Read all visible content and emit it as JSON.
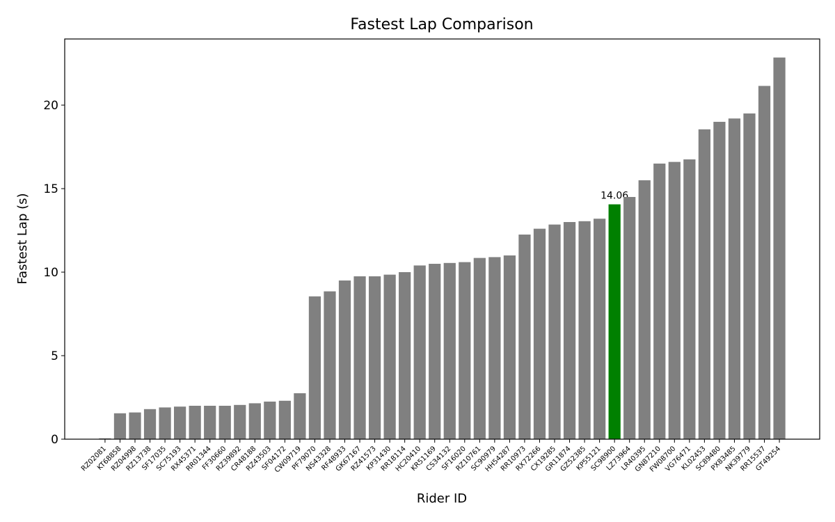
{
  "chart_data": {
    "type": "bar",
    "title": "Fastest Lap Comparison",
    "x_label": "Rider ID",
    "y_label": "Fastest Lap (s)",
    "categories": [
      "RZ02081",
      "KT68858",
      "RZ04998",
      "RZ13738",
      "SF17035",
      "SC75193",
      "RX45371",
      "RR01344",
      "FF30660",
      "RZ39892",
      "CR48188",
      "RZ43503",
      "SF04172",
      "CW09719",
      "PF79070",
      "NS43328",
      "RF48933",
      "GK67167",
      "RZ41573",
      "KP31430",
      "RR18114",
      "HC20410",
      "KR51169",
      "CS34132",
      "SF16020",
      "RZ10761",
      "SC90979",
      "HH54287",
      "RR10973",
      "RX72266",
      "CX19285",
      "GR11874",
      "GZ52385",
      "KP55121",
      "SC98900",
      "LZ73964",
      "LR40395",
      "GN87210",
      "FW08700",
      "VG76471",
      "KL02453",
      "SC89480",
      "PX83485",
      "NK39779",
      "RR15537",
      "GT49254"
    ],
    "values": [
      0.05,
      1.55,
      1.6,
      1.8,
      1.9,
      1.95,
      2.0,
      2.0,
      2.0,
      2.05,
      2.15,
      2.25,
      2.3,
      2.75,
      8.55,
      8.85,
      9.5,
      9.75,
      9.75,
      9.85,
      10.0,
      10.4,
      10.5,
      10.55,
      10.6,
      10.85,
      10.9,
      11.0,
      12.25,
      12.6,
      12.85,
      13.0,
      13.05,
      13.2,
      14.06,
      14.5,
      15.5,
      16.5,
      16.6,
      16.75,
      18.55,
      19.0,
      19.2,
      19.5,
      21.15,
      22.85
    ],
    "color": "#808080",
    "highlight_index": 34,
    "highlight_color": "#008000",
    "ylim": [
      0,
      23.96
    ],
    "yticks": [
      0,
      5,
      10,
      15,
      20
    ]
  }
}
